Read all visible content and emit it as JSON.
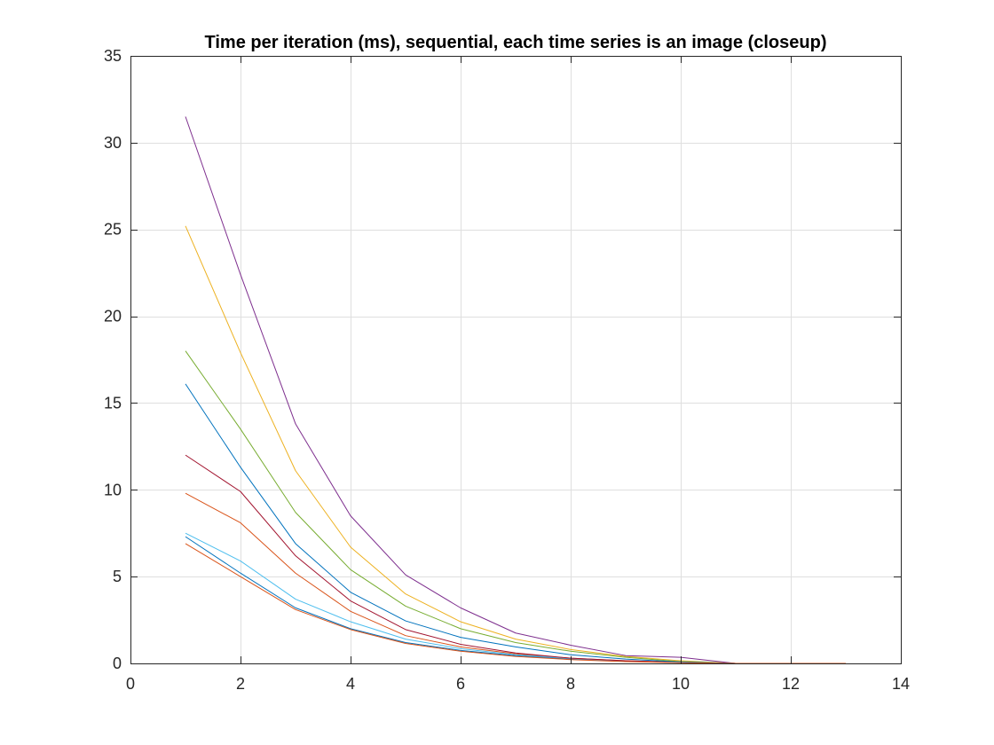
{
  "chart_data": {
    "type": "line",
    "title": "Time per iteration (ms), sequential, each time series is an image (closeup)",
    "xlabel": "",
    "ylabel": "",
    "xlim": [
      0,
      14
    ],
    "ylim": [
      0,
      35
    ],
    "xticks": [
      0,
      2,
      4,
      6,
      8,
      10,
      12,
      14
    ],
    "yticks": [
      0,
      5,
      10,
      15,
      20,
      25,
      30,
      35
    ],
    "xtick_labels": [
      "0",
      "2",
      "4",
      "6",
      "8",
      "10",
      "12",
      "14"
    ],
    "ytick_labels": [
      "0",
      "5",
      "10",
      "15",
      "20",
      "25",
      "30",
      "35"
    ],
    "grid": true,
    "legend": "none",
    "x": [
      1,
      2,
      3,
      4,
      5,
      6,
      7,
      8,
      9,
      10,
      11,
      12,
      13
    ],
    "series": [
      {
        "color": "#0072BD",
        "values": [
          7.3,
          5.2,
          3.2,
          2.0,
          1.2,
          0.75,
          0.45,
          0.25,
          0.12,
          0.05,
          0.0,
          0.0,
          0.0
        ]
      },
      {
        "color": "#D95319",
        "values": [
          9.8,
          8.1,
          5.2,
          3.0,
          1.6,
          0.95,
          0.55,
          0.3,
          0.15,
          0.06,
          0.0,
          0.0,
          0.0
        ]
      },
      {
        "color": "#EDB120",
        "values": [
          25.2,
          17.9,
          11.1,
          6.7,
          4.0,
          2.4,
          1.4,
          0.8,
          0.4,
          0.15,
          0.0,
          0.0,
          0.0
        ]
      },
      {
        "color": "#7E2F8E",
        "values": [
          31.5,
          22.4,
          13.8,
          8.5,
          5.1,
          3.2,
          1.75,
          1.05,
          0.45,
          0.35,
          0.0,
          0.0,
          0.0
        ]
      },
      {
        "color": "#77AC30",
        "values": [
          18.0,
          13.5,
          8.7,
          5.4,
          3.3,
          2.0,
          1.2,
          0.7,
          0.35,
          0.1,
          0.0,
          0.0,
          0.0
        ]
      },
      {
        "color": "#4DBEEE",
        "values": [
          7.5,
          5.9,
          3.7,
          2.4,
          1.4,
          0.85,
          0.5,
          0.28,
          0.13,
          0.05,
          0.0,
          0.0,
          0.0
        ]
      },
      {
        "color": "#A2142F",
        "values": [
          12.0,
          9.9,
          6.2,
          3.6,
          1.95,
          1.1,
          0.6,
          0.3,
          0.15,
          0.05,
          0.0,
          0.0,
          0.0
        ]
      },
      {
        "color": "#0072BD",
        "values": [
          16.1,
          11.3,
          6.9,
          4.1,
          2.45,
          1.5,
          0.95,
          0.5,
          0.25,
          0.08,
          0.0,
          0.0,
          0.0
        ]
      },
      {
        "color": "#D95319",
        "values": [
          6.9,
          5.0,
          3.1,
          1.95,
          1.15,
          0.7,
          0.4,
          0.22,
          0.1,
          0.04,
          0.0,
          0.0,
          0.0
        ]
      }
    ]
  }
}
